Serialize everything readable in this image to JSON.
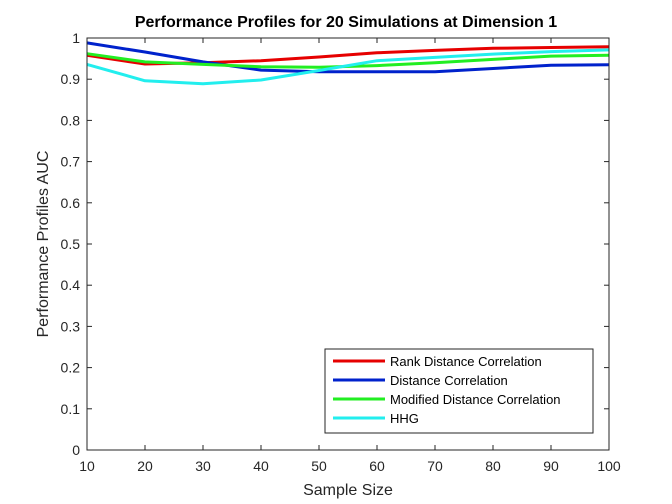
{
  "chart_data": {
    "type": "line",
    "title": "Performance Profiles for 20 Simulations at Dimension 1",
    "xlabel": "Sample Size",
    "ylabel": "Performance Profiles AUC",
    "x": [
      10,
      20,
      30,
      40,
      50,
      60,
      70,
      80,
      90,
      100
    ],
    "xlim": [
      10,
      100
    ],
    "ylim": [
      0,
      1
    ],
    "xticks": [
      10,
      20,
      30,
      40,
      50,
      60,
      70,
      80,
      90,
      100
    ],
    "yticks": [
      0,
      0.1,
      0.2,
      0.3,
      0.4,
      0.5,
      0.6,
      0.7,
      0.8,
      0.9,
      1
    ],
    "xtick_labels": [
      "10",
      "20",
      "30",
      "40",
      "50",
      "60",
      "70",
      "80",
      "90",
      "100"
    ],
    "ytick_labels": [
      "0",
      "0.1",
      "0.2",
      "0.3",
      "0.4",
      "0.5",
      "0.6",
      "0.7",
      "0.8",
      "0.9",
      "1"
    ],
    "grid": false,
    "legend_position": "bottom-right",
    "series": [
      {
        "name": "Rank Distance Correlation",
        "color": "#e60000",
        "values": [
          0.958,
          0.937,
          0.94,
          0.945,
          0.954,
          0.964,
          0.97,
          0.975,
          0.977,
          0.979
        ]
      },
      {
        "name": "Distance Correlation",
        "color": "#0022cc",
        "values": [
          0.988,
          0.966,
          0.942,
          0.922,
          0.918,
          0.918,
          0.918,
          0.926,
          0.934,
          0.935
        ]
      },
      {
        "name": "Modified Distance Correlation",
        "color": "#22ee22",
        "values": [
          0.962,
          0.942,
          0.936,
          0.93,
          0.929,
          0.933,
          0.94,
          0.948,
          0.956,
          0.958
        ]
      },
      {
        "name": "HHG",
        "color": "#22eeee",
        "values": [
          0.936,
          0.896,
          0.889,
          0.898,
          0.921,
          0.945,
          0.953,
          0.961,
          0.967,
          0.971
        ]
      }
    ]
  }
}
